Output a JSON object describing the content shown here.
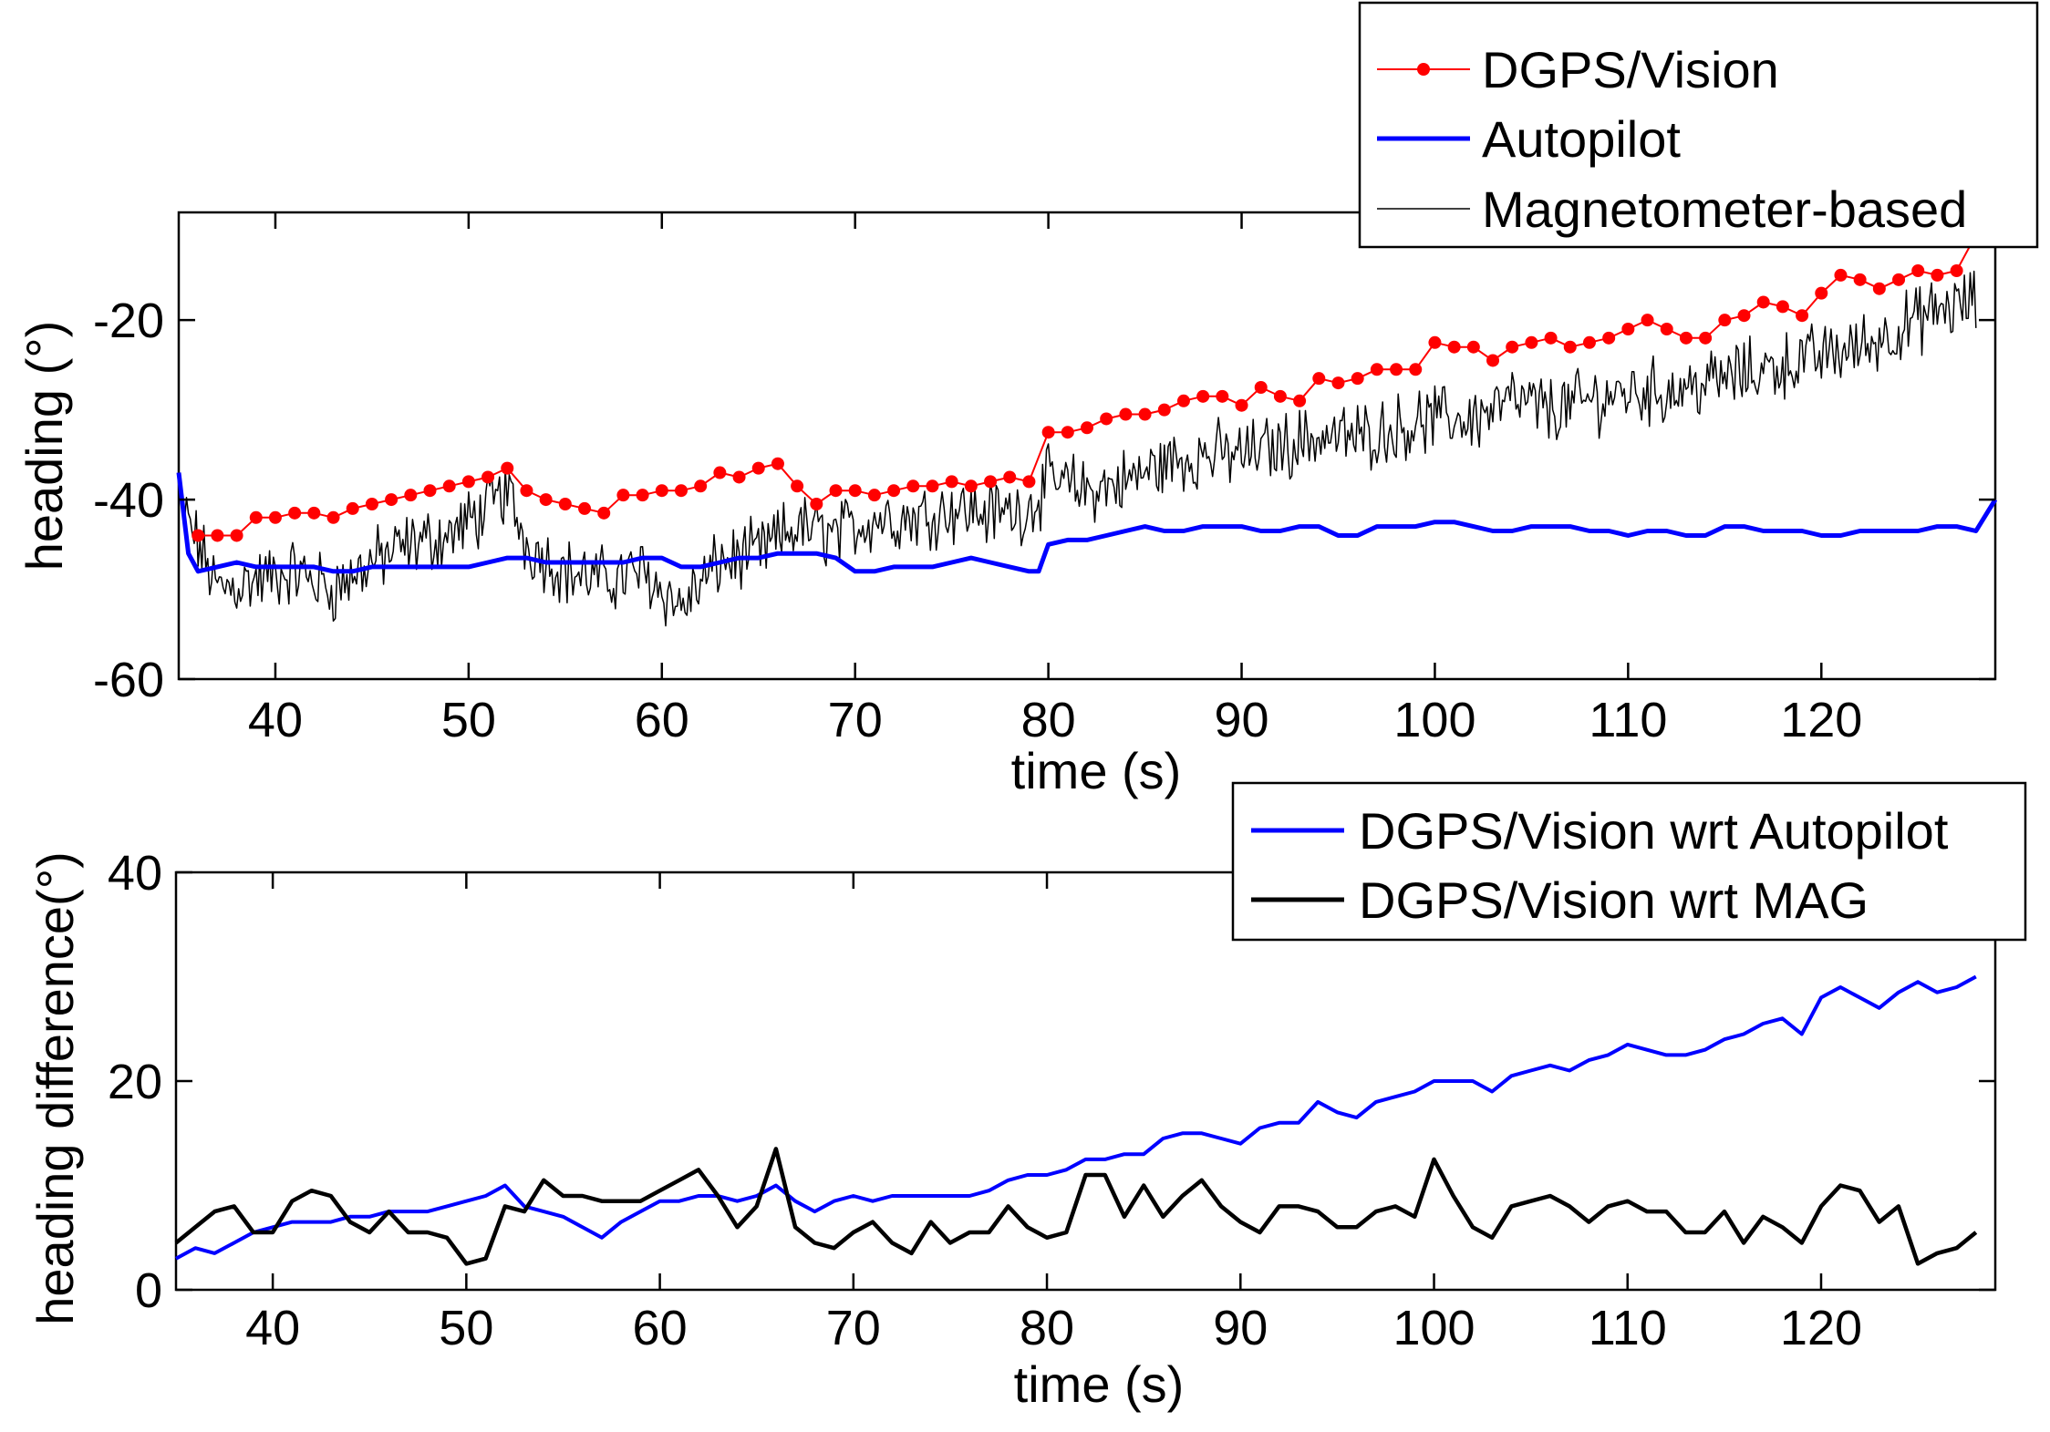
{
  "chart_data": [
    {
      "type": "line",
      "xlabel": "time (s)",
      "ylabel": "heading (°)",
      "xlim": [
        35,
        129
      ],
      "ylim": [
        -60,
        -8
      ],
      "xticks": [
        "40",
        "50",
        "60",
        "70",
        "80",
        "90",
        "100",
        "110",
        "120"
      ],
      "yticks": [
        "-60",
        "-40",
        "-20"
      ],
      "grid": false,
      "legend_position": "top-right",
      "series": [
        {
          "name": "DGPS/Vision",
          "color": "#ff0000",
          "marker": "dot",
          "x": [
            36,
            37,
            38,
            39,
            40,
            41,
            42,
            43,
            44,
            45,
            46,
            47,
            48,
            49,
            50,
            51,
            52,
            53,
            54,
            55,
            56,
            57,
            58,
            59,
            60,
            61,
            62,
            63,
            64,
            65,
            66,
            67,
            68,
            69,
            70,
            71,
            72,
            73,
            74,
            75,
            76,
            77,
            78,
            79,
            80,
            81,
            82,
            83,
            84,
            85,
            86,
            87,
            88,
            89,
            90,
            91,
            92,
            93,
            94,
            95,
            96,
            97,
            98,
            99,
            100,
            101,
            102,
            103,
            104,
            105,
            106,
            107,
            108,
            109,
            110,
            111,
            112,
            113,
            114,
            115,
            116,
            117,
            118,
            119,
            120,
            121,
            122,
            123,
            124,
            125,
            126,
            127,
            128
          ],
          "y": [
            -44,
            -44,
            -44,
            -42,
            -42,
            -41.5,
            -41.5,
            -42,
            -41,
            -40.5,
            -40,
            -39.5,
            -39,
            -38.5,
            -38,
            -37.5,
            -36.5,
            -39,
            -40,
            -40.5,
            -41,
            -41.5,
            -39.5,
            -39.5,
            -39,
            -39,
            -38.5,
            -37,
            -37.5,
            -36.5,
            -36,
            -38.5,
            -40.5,
            -39,
            -39,
            -39.5,
            -39,
            -38.5,
            -38.5,
            -38,
            -38.5,
            -38,
            -37.5,
            -38,
            -32.5,
            -32.5,
            -32,
            -31,
            -30.5,
            -30.5,
            -30,
            -29,
            -28.5,
            -28.5,
            -29.5,
            -27.5,
            -28.5,
            -29,
            -26.5,
            -27,
            -26.5,
            -25.5,
            -25.5,
            -25.5,
            -22.5,
            -23,
            -23,
            -24.5,
            -23,
            -22.5,
            -22,
            -23,
            -22.5,
            -22,
            -21,
            -20,
            -21,
            -22,
            -22,
            -20,
            -19.5,
            -18,
            -18.5,
            -19.5,
            -17,
            -15,
            -15.5,
            -16.5,
            -15.5,
            -14.5,
            -15,
            -14.5,
            -10.5
          ]
        },
        {
          "name": "Autopilot",
          "color": "#0000ff",
          "x": [
            35,
            35.5,
            36,
            37,
            38,
            39,
            40,
            41,
            42,
            43,
            44,
            45,
            46,
            47,
            48,
            49,
            50,
            51,
            52,
            53,
            54,
            55,
            56,
            57,
            58,
            59,
            60,
            61,
            62,
            63,
            64,
            65,
            66,
            67,
            68,
            69,
            70,
            71,
            72,
            73,
            74,
            75,
            76,
            77,
            78,
            79,
            79.5,
            80,
            81,
            82,
            83,
            84,
            85,
            86,
            87,
            88,
            89,
            90,
            91,
            92,
            93,
            94,
            95,
            96,
            97,
            98,
            99,
            100,
            101,
            102,
            103,
            104,
            105,
            106,
            107,
            108,
            109,
            110,
            111,
            112,
            113,
            114,
            115,
            116,
            117,
            118,
            119,
            120,
            121,
            122,
            123,
            124,
            125,
            126,
            127,
            128,
            129
          ],
          "y": [
            -37,
            -46,
            -48,
            -47.5,
            -47,
            -47.5,
            -47.5,
            -47.5,
            -47.5,
            -48,
            -48,
            -47.5,
            -47.5,
            -47.5,
            -47.5,
            -47.5,
            -47.5,
            -47,
            -46.5,
            -46.5,
            -47,
            -47,
            -47,
            -47,
            -47,
            -46.5,
            -46.5,
            -47.5,
            -47.5,
            -47,
            -46.5,
            -46.5,
            -46,
            -46,
            -46,
            -46.5,
            -48,
            -48,
            -47.5,
            -47.5,
            -47.5,
            -47,
            -46.5,
            -47,
            -47.5,
            -48,
            -48,
            -45,
            -44.5,
            -44.5,
            -44,
            -43.5,
            -43,
            -43.5,
            -43.5,
            -43,
            -43,
            -43,
            -43.5,
            -43.5,
            -43,
            -43,
            -44,
            -44,
            -43,
            -43,
            -43,
            -42.5,
            -42.5,
            -43,
            -43.5,
            -43.5,
            -43,
            -43,
            -43,
            -43.5,
            -43.5,
            -44,
            -43.5,
            -43.5,
            -44,
            -44,
            -43,
            -43,
            -43.5,
            -43.5,
            -43.5,
            -44,
            -44,
            -43.5,
            -43.5,
            -43.5,
            -43.5,
            -43,
            -43,
            -43.5,
            -40
          ]
        },
        {
          "name": "Magnetometer-based",
          "color": "#000000",
          "x": [
            35,
            37,
            39,
            41,
            43,
            45,
            47,
            49,
            51,
            52,
            53,
            55,
            57,
            59,
            61,
            63,
            65,
            67,
            69,
            71,
            73,
            75,
            77,
            79,
            80,
            82,
            84,
            86,
            88,
            90,
            92,
            94,
            96,
            98,
            100,
            102,
            104,
            106,
            108,
            110,
            112,
            114,
            116,
            118,
            120,
            122,
            124,
            126,
            128
          ],
          "y": [
            -40,
            -50,
            -49,
            -48,
            -50,
            -47,
            -45,
            -44,
            -41,
            -39,
            -45,
            -48,
            -49,
            -48,
            -52,
            -47,
            -46,
            -43,
            -44,
            -42,
            -42,
            -41,
            -41.5,
            -41,
            -38,
            -39,
            -38,
            -36,
            -35,
            -35,
            -34,
            -33,
            -33,
            -32,
            -31,
            -31,
            -29,
            -30,
            -29,
            -28,
            -28,
            -27,
            -26,
            -25,
            -24,
            -23,
            -21,
            -19,
            -18
          ]
        }
      ]
    },
    {
      "type": "line",
      "xlabel": "time (s)",
      "ylabel": "heading difference(°)",
      "xlim": [
        35,
        129
      ],
      "ylim": [
        0,
        40
      ],
      "xticks": [
        "40",
        "50",
        "60",
        "70",
        "80",
        "90",
        "100",
        "110",
        "120"
      ],
      "yticks": [
        "0",
        "20",
        "40"
      ],
      "grid": false,
      "legend_position": "top-right",
      "series": [
        {
          "name": "DGPS/Vision wrt Autopilot",
          "color": "#0000ff",
          "x": [
            35,
            36,
            37,
            38,
            39,
            40,
            41,
            42,
            43,
            44,
            45,
            46,
            47,
            48,
            49,
            50,
            51,
            52,
            53,
            54,
            55,
            56,
            57,
            58,
            59,
            60,
            61,
            62,
            63,
            64,
            65,
            66,
            67,
            68,
            69,
            70,
            71,
            72,
            73,
            74,
            75,
            76,
            77,
            78,
            79,
            80,
            81,
            82,
            83,
            84,
            85,
            86,
            87,
            88,
            89,
            90,
            91,
            92,
            93,
            94,
            95,
            96,
            97,
            98,
            99,
            100,
            101,
            102,
            103,
            104,
            105,
            106,
            107,
            108,
            109,
            110,
            111,
            112,
            113,
            114,
            115,
            116,
            117,
            118,
            119,
            120,
            121,
            122,
            123,
            124,
            125,
            126,
            127,
            128
          ],
          "y": [
            3,
            4,
            3.5,
            4.5,
            5.5,
            6,
            6.5,
            6.5,
            6.5,
            7,
            7,
            7.5,
            7.5,
            7.5,
            8,
            8.5,
            9,
            10,
            8,
            7.5,
            7,
            6,
            5,
            6.5,
            7.5,
            8.5,
            8.5,
            9,
            9,
            8.5,
            9,
            10,
            8.5,
            7.5,
            8.5,
            9,
            8.5,
            9,
            9,
            9,
            9,
            9,
            9.5,
            10.5,
            11,
            11,
            11.5,
            12.5,
            12.5,
            13,
            13,
            14.5,
            15,
            15,
            14.5,
            14,
            15.5,
            16,
            16,
            18,
            17,
            16.5,
            18,
            18.5,
            19,
            20,
            20,
            20,
            19,
            20.5,
            21,
            21.5,
            21,
            22,
            22.5,
            23.5,
            23,
            22.5,
            22.5,
            23,
            24,
            24.5,
            25.5,
            26,
            24.5,
            28,
            29,
            28,
            27,
            28.5,
            29.5,
            28.5,
            29,
            30
          ]
        },
        {
          "name": "DGPS/Vision wrt MAG",
          "color": "#000000",
          "x": [
            35,
            36,
            37,
            38,
            39,
            40,
            41,
            42,
            43,
            44,
            45,
            46,
            47,
            48,
            49,
            50,
            51,
            52,
            53,
            54,
            55,
            56,
            57,
            58,
            59,
            60,
            61,
            62,
            63,
            64,
            65,
            66,
            67,
            68,
            69,
            70,
            71,
            72,
            73,
            74,
            75,
            76,
            77,
            78,
            79,
            80,
            81,
            82,
            83,
            84,
            85,
            86,
            87,
            88,
            89,
            90,
            91,
            92,
            93,
            94,
            95,
            96,
            97,
            98,
            99,
            100,
            101,
            102,
            103,
            104,
            105,
            106,
            107,
            108,
            109,
            110,
            111,
            112,
            113,
            114,
            115,
            116,
            117,
            118,
            119,
            120,
            121,
            122,
            123,
            124,
            125,
            126,
            127,
            128
          ],
          "y": [
            4.5,
            6,
            7.5,
            8,
            5.5,
            5.5,
            8.5,
            9.5,
            9,
            6.5,
            5.5,
            7.5,
            5.5,
            5.5,
            5,
            2.5,
            3,
            8,
            7.5,
            10.5,
            9,
            9,
            8.5,
            8.5,
            8.5,
            9.5,
            10.5,
            11.5,
            9,
            6,
            8,
            13.5,
            6,
            4.5,
            4,
            5.5,
            6.5,
            4.5,
            3.5,
            6.5,
            4.5,
            5.5,
            5.5,
            8,
            6,
            5,
            5.5,
            11,
            11,
            7,
            10,
            7,
            9,
            10.5,
            8,
            6.5,
            5.5,
            8,
            8,
            7.5,
            6,
            6,
            7.5,
            8,
            7,
            12.5,
            9,
            6,
            5,
            8,
            8.5,
            9,
            8,
            6.5,
            8,
            8.5,
            7.5,
            7.5,
            5.5,
            5.5,
            7.5,
            4.5,
            7,
            6,
            4.5,
            8,
            10,
            9.5,
            6.5,
            8,
            2.5,
            3.5,
            4,
            5.5
          ]
        }
      ]
    }
  ]
}
